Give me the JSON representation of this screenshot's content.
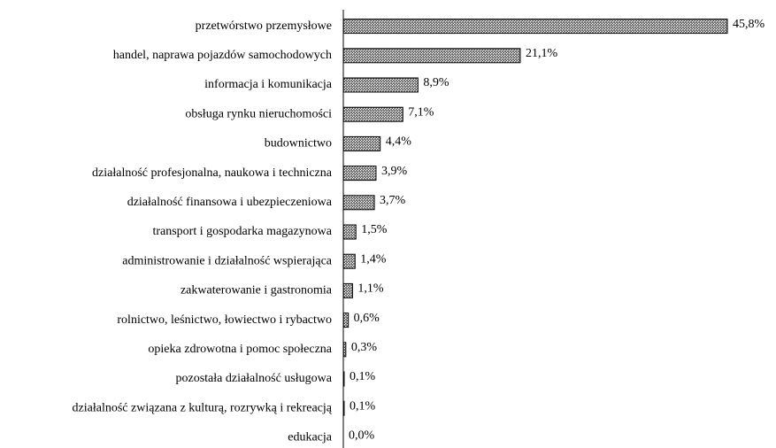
{
  "chart_data": {
    "type": "bar",
    "orientation": "horizontal",
    "color": "#7a7a7a",
    "categories": [
      "przetwórstwo przemysłowe",
      "handel, naprawa pojazdów samochodowych",
      "informacja i komunikacja",
      "obsługa rynku nieruchomości",
      "budownictwo",
      "działalność profesjonalna, naukowa i techniczna",
      "działalność finansowa i ubezpieczeniowa",
      "transport i gospodarka magazynowa",
      "administrowanie i działalność wspierająca",
      "zakwaterowanie i gastronomia",
      "rolnictwo, leśnictwo, łowiectwo i rybactwo",
      "opieka zdrowotna i pomoc społeczna",
      "pozostała działalność usługowa",
      "działalność związana z kulturą, rozrywką i rekreacją",
      "edukacja"
    ],
    "values": [
      45.8,
      21.1,
      8.9,
      7.1,
      4.4,
      3.9,
      3.7,
      1.5,
      1.4,
      1.1,
      0.6,
      0.3,
      0.1,
      0.1,
      0.0
    ],
    "value_labels": [
      "45,8%",
      "21,1%",
      "8,9%",
      "7,1%",
      "4,4%",
      "3,9%",
      "3,7%",
      "1,5%",
      "1,4%",
      "1,1%",
      "0,6%",
      "0,3%",
      "0,1%",
      "0,1%",
      "0,0%"
    ]
  }
}
